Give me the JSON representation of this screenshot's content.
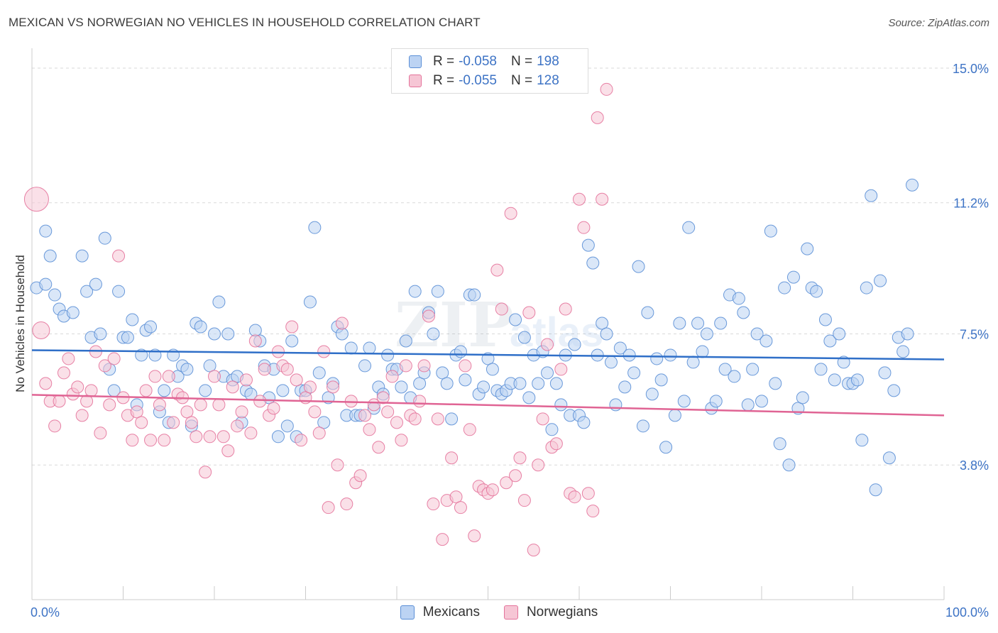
{
  "title": "MEXICAN VS NORWEGIAN NO VEHICLES IN HOUSEHOLD CORRELATION CHART",
  "source": "Source: ZipAtlas.com",
  "colors": {
    "blue": "#5b8fd6",
    "blue_fill": "#bcd3f3",
    "pink": "#e4739b",
    "pink_fill": "#f6c6d5",
    "tick_label": "#3d73c5"
  },
  "legend": {
    "rows": [
      {
        "r_label": "R = ",
        "r_value": "-0.058",
        "n_label": "N = ",
        "n_value": "198"
      },
      {
        "r_label": "R = ",
        "r_value": "-0.055",
        "n_label": "N = ",
        "n_value": "128"
      }
    ]
  },
  "bottom_legend": [
    "Mexicans",
    "Norwegians"
  ],
  "chart_data": {
    "type": "scatter",
    "title": "MEXICAN VS NORWEGIAN NO VEHICLES IN HOUSEHOLD CORRELATION CHART",
    "xlabel": "",
    "ylabel": "No Vehicles in Household",
    "x_tick_labels": [
      "0.0%",
      "100.0%"
    ],
    "y_tick_labels": [
      "3.8%",
      "7.5%",
      "11.2%",
      "15.0%"
    ],
    "y_ticks": [
      3.8,
      7.5,
      11.2,
      15.0
    ],
    "xlim": [
      0,
      100
    ],
    "ylim": [
      0,
      15.4
    ],
    "grid": true,
    "series": [
      {
        "name": "Mexicans",
        "trend": [
          [
            0,
            7.04
          ],
          [
            100,
            6.78
          ]
        ],
        "points": [
          [
            0.5,
            8.8
          ],
          [
            1.5,
            8.9
          ],
          [
            1.5,
            10.4
          ],
          [
            2,
            9.7
          ],
          [
            2.5,
            8.6
          ],
          [
            3,
            8.2
          ],
          [
            3.5,
            8.0
          ],
          [
            4.5,
            8.1
          ],
          [
            5.5,
            9.7
          ],
          [
            6,
            8.7
          ],
          [
            6.5,
            7.4
          ],
          [
            7,
            8.9
          ],
          [
            7.5,
            7.5
          ],
          [
            8,
            10.2
          ],
          [
            8.5,
            6.5
          ],
          [
            9,
            5.9
          ],
          [
            9.5,
            8.7
          ],
          [
            10,
            7.4
          ],
          [
            10.5,
            7.4
          ],
          [
            11,
            7.9
          ],
          [
            11.5,
            5.5
          ],
          [
            12,
            6.9
          ],
          [
            12.5,
            7.6
          ],
          [
            13,
            7.7
          ],
          [
            13.5,
            6.9
          ],
          [
            14,
            5.3
          ],
          [
            14.5,
            5.9
          ],
          [
            15,
            5.0
          ],
          [
            15.5,
            6.9
          ],
          [
            16,
            6.3
          ],
          [
            16.5,
            6.6
          ],
          [
            17,
            6.5
          ],
          [
            17.5,
            4.9
          ],
          [
            18,
            7.8
          ],
          [
            18.5,
            7.7
          ],
          [
            19,
            5.9
          ],
          [
            19.5,
            6.6
          ],
          [
            20,
            7.5
          ],
          [
            20.5,
            8.4
          ],
          [
            21,
            6.3
          ],
          [
            21.5,
            7.5
          ],
          [
            22,
            6.2
          ],
          [
            22.5,
            6.3
          ],
          [
            23,
            5.0
          ],
          [
            23.5,
            5.9
          ],
          [
            24,
            5.8
          ],
          [
            24.5,
            7.6
          ],
          [
            25,
            7.3
          ],
          [
            25.5,
            6.6
          ],
          [
            26,
            5.7
          ],
          [
            26.5,
            6.5
          ],
          [
            27,
            4.6
          ],
          [
            27.5,
            5.9
          ],
          [
            28,
            4.9
          ],
          [
            28.5,
            7.3
          ],
          [
            29,
            4.6
          ],
          [
            29.5,
            5.9
          ],
          [
            30,
            5.9
          ],
          [
            30.5,
            8.4
          ],
          [
            31,
            10.5
          ],
          [
            31.5,
            6.4
          ],
          [
            32,
            5.0
          ],
          [
            32.5,
            5.7
          ],
          [
            33,
            6.1
          ],
          [
            33.5,
            7.7
          ],
          [
            34,
            7.5
          ],
          [
            34.5,
            5.2
          ],
          [
            35,
            7.1
          ],
          [
            35.5,
            5.2
          ],
          [
            36,
            5.2
          ],
          [
            36.5,
            6.6
          ],
          [
            37,
            7.1
          ],
          [
            37.5,
            5.4
          ],
          [
            38,
            6.0
          ],
          [
            38.5,
            5.8
          ],
          [
            39,
            6.9
          ],
          [
            39.5,
            6.5
          ],
          [
            40,
            6.5
          ],
          [
            40.5,
            6.0
          ],
          [
            41,
            7.3
          ],
          [
            41.5,
            5.7
          ],
          [
            42,
            8.7
          ],
          [
            42.5,
            6.1
          ],
          [
            43,
            6.4
          ],
          [
            43.5,
            8.1
          ],
          [
            44,
            7.5
          ],
          [
            44.5,
            8.7
          ],
          [
            45,
            6.4
          ],
          [
            45.5,
            6.1
          ],
          [
            46,
            5.1
          ],
          [
            46.5,
            6.9
          ],
          [
            47,
            7.0
          ],
          [
            47.5,
            6.2
          ],
          [
            48,
            8.6
          ],
          [
            48.5,
            8.6
          ],
          [
            49,
            5.8
          ],
          [
            49.5,
            6.0
          ],
          [
            50,
            6.8
          ],
          [
            50.5,
            6.5
          ],
          [
            51,
            5.9
          ],
          [
            51.5,
            5.8
          ],
          [
            52,
            5.9
          ],
          [
            52.5,
            6.1
          ],
          [
            53,
            7.9
          ],
          [
            53.5,
            6.1
          ],
          [
            54,
            7.4
          ],
          [
            54.5,
            5.7
          ],
          [
            55,
            6.9
          ],
          [
            55.5,
            6.1
          ],
          [
            56,
            7.0
          ],
          [
            56.5,
            6.4
          ],
          [
            57,
            4.8
          ],
          [
            57.5,
            6.1
          ],
          [
            58,
            5.5
          ],
          [
            58.5,
            6.9
          ],
          [
            59,
            5.2
          ],
          [
            59.5,
            7.2
          ],
          [
            60,
            5.2
          ],
          [
            60.5,
            5.0
          ],
          [
            61,
            10.0
          ],
          [
            61.5,
            9.5
          ],
          [
            62,
            6.9
          ],
          [
            62.5,
            7.8
          ],
          [
            63,
            7.5
          ],
          [
            63.5,
            6.7
          ],
          [
            64,
            5.5
          ],
          [
            64.5,
            7.1
          ],
          [
            65,
            6.0
          ],
          [
            65.5,
            6.9
          ],
          [
            66,
            6.4
          ],
          [
            66.5,
            9.4
          ],
          [
            67,
            4.9
          ],
          [
            67.5,
            8.1
          ],
          [
            68,
            5.8
          ],
          [
            68.5,
            6.8
          ],
          [
            69,
            6.2
          ],
          [
            69.5,
            4.3
          ],
          [
            70,
            6.9
          ],
          [
            70.5,
            5.2
          ],
          [
            71,
            7.8
          ],
          [
            71.5,
            5.6
          ],
          [
            72,
            10.5
          ],
          [
            72.5,
            6.7
          ],
          [
            73,
            7.8
          ],
          [
            73.5,
            7.0
          ],
          [
            74,
            7.5
          ],
          [
            74.5,
            5.4
          ],
          [
            75,
            5.6
          ],
          [
            75.5,
            7.8
          ],
          [
            76,
            6.5
          ],
          [
            76.5,
            8.6
          ],
          [
            77,
            6.3
          ],
          [
            77.5,
            8.5
          ],
          [
            78,
            8.1
          ],
          [
            78.5,
            5.5
          ],
          [
            79,
            6.5
          ],
          [
            79.5,
            7.5
          ],
          [
            80,
            5.6
          ],
          [
            80.5,
            7.3
          ],
          [
            81,
            10.4
          ],
          [
            81.5,
            6.1
          ],
          [
            82,
            4.4
          ],
          [
            82.5,
            8.8
          ],
          [
            83,
            3.8
          ],
          [
            83.5,
            9.1
          ],
          [
            84,
            5.4
          ],
          [
            84.5,
            5.7
          ],
          [
            85,
            9.9
          ],
          [
            85.5,
            8.8
          ],
          [
            86,
            8.7
          ],
          [
            86.5,
            6.5
          ],
          [
            87,
            7.9
          ],
          [
            87.5,
            7.3
          ],
          [
            88,
            6.2
          ],
          [
            88.5,
            7.5
          ],
          [
            89,
            6.7
          ],
          [
            89.5,
            6.1
          ],
          [
            90,
            6.1
          ],
          [
            90.5,
            6.2
          ],
          [
            91,
            4.5
          ],
          [
            91.5,
            8.8
          ],
          [
            92,
            11.4
          ],
          [
            92.5,
            3.1
          ],
          [
            93,
            9.0
          ],
          [
            93.5,
            6.4
          ],
          [
            94,
            4.0
          ],
          [
            94.5,
            5.9
          ],
          [
            95,
            7.4
          ],
          [
            95.5,
            7.0
          ],
          [
            96,
            7.5
          ],
          [
            96.5,
            11.7
          ]
        ]
      },
      {
        "name": "Norwegians",
        "trend": [
          [
            0,
            5.78
          ],
          [
            100,
            5.2
          ]
        ],
        "points": [
          [
            0.5,
            11.3
          ],
          [
            1,
            7.6
          ],
          [
            1.5,
            6.1
          ],
          [
            2,
            5.6
          ],
          [
            2.5,
            4.9
          ],
          [
            3,
            5.6
          ],
          [
            3.5,
            6.4
          ],
          [
            4,
            6.8
          ],
          [
            4.5,
            5.8
          ],
          [
            5,
            6.0
          ],
          [
            5.5,
            5.2
          ],
          [
            6,
            5.6
          ],
          [
            6.5,
            5.9
          ],
          [
            7,
            7.0
          ],
          [
            7.5,
            4.7
          ],
          [
            8,
            6.6
          ],
          [
            8.5,
            5.5
          ],
          [
            9,
            6.8
          ],
          [
            9.5,
            9.7
          ],
          [
            10,
            5.7
          ],
          [
            10.5,
            5.2
          ],
          [
            11,
            4.5
          ],
          [
            11.5,
            5.3
          ],
          [
            12,
            5.0
          ],
          [
            12.5,
            5.9
          ],
          [
            13,
            4.5
          ],
          [
            13.5,
            6.3
          ],
          [
            14,
            5.5
          ],
          [
            14.5,
            4.5
          ],
          [
            15,
            6.3
          ],
          [
            15.5,
            5.0
          ],
          [
            16,
            5.8
          ],
          [
            16.5,
            5.7
          ],
          [
            17,
            5.3
          ],
          [
            17.5,
            5.0
          ],
          [
            18,
            4.6
          ],
          [
            18.5,
            5.5
          ],
          [
            19,
            3.6
          ],
          [
            19.5,
            4.6
          ],
          [
            20,
            6.3
          ],
          [
            20.5,
            5.5
          ],
          [
            21,
            4.6
          ],
          [
            21.5,
            4.2
          ],
          [
            22,
            6.0
          ],
          [
            22.5,
            4.9
          ],
          [
            23,
            5.3
          ],
          [
            23.5,
            6.2
          ],
          [
            24,
            4.7
          ],
          [
            24.5,
            7.3
          ],
          [
            25,
            5.6
          ],
          [
            25.5,
            6.5
          ],
          [
            26,
            5.2
          ],
          [
            26.5,
            5.4
          ],
          [
            27,
            7.0
          ],
          [
            27.5,
            6.6
          ],
          [
            28,
            6.5
          ],
          [
            28.5,
            7.7
          ],
          [
            29,
            6.2
          ],
          [
            29.5,
            4.5
          ],
          [
            30,
            5.7
          ],
          [
            30.5,
            6.0
          ],
          [
            31,
            5.3
          ],
          [
            31.5,
            4.7
          ],
          [
            32,
            7.0
          ],
          [
            32.5,
            2.6
          ],
          [
            33,
            6.0
          ],
          [
            33.5,
            3.8
          ],
          [
            34,
            7.8
          ],
          [
            34.5,
            2.7
          ],
          [
            35,
            5.6
          ],
          [
            35.5,
            3.3
          ],
          [
            36,
            3.5
          ],
          [
            36.5,
            5.2
          ],
          [
            37,
            4.8
          ],
          [
            37.5,
            5.5
          ],
          [
            38,
            4.3
          ],
          [
            38.5,
            5.7
          ],
          [
            39,
            5.3
          ],
          [
            39.5,
            6.3
          ],
          [
            40,
            5.0
          ],
          [
            40.5,
            4.5
          ],
          [
            41,
            6.6
          ],
          [
            41.5,
            5.2
          ],
          [
            42,
            5.1
          ],
          [
            42.5,
            5.6
          ],
          [
            43,
            6.6
          ],
          [
            43.5,
            8.0
          ],
          [
            44,
            2.7
          ],
          [
            44.5,
            5.1
          ],
          [
            45,
            1.7
          ],
          [
            45.5,
            2.8
          ],
          [
            46,
            4.0
          ],
          [
            46.5,
            2.9
          ],
          [
            47,
            2.6
          ],
          [
            47.5,
            6.6
          ],
          [
            48,
            4.8
          ],
          [
            48.5,
            1.8
          ],
          [
            49,
            3.2
          ],
          [
            49.5,
            3.1
          ],
          [
            50,
            3.0
          ],
          [
            50.5,
            3.1
          ],
          [
            51,
            9.3
          ],
          [
            51.5,
            8.2
          ],
          [
            52,
            3.3
          ],
          [
            52.5,
            10.9
          ],
          [
            53,
            3.5
          ],
          [
            53.5,
            4.0
          ],
          [
            54,
            2.8
          ],
          [
            54.5,
            8.1
          ],
          [
            55,
            1.4
          ],
          [
            55.5,
            3.8
          ],
          [
            56,
            5.1
          ],
          [
            56.5,
            7.2
          ],
          [
            57,
            4.3
          ],
          [
            57.5,
            4.4
          ],
          [
            58,
            6.5
          ],
          [
            58.5,
            8.2
          ],
          [
            59,
            3.0
          ],
          [
            59.5,
            2.9
          ],
          [
            60,
            11.3
          ],
          [
            60.5,
            10.5
          ],
          [
            61,
            3.0
          ],
          [
            61.5,
            2.5
          ],
          [
            62,
            13.6
          ],
          [
            62.5,
            11.3
          ],
          [
            63,
            14.4
          ]
        ]
      }
    ]
  }
}
